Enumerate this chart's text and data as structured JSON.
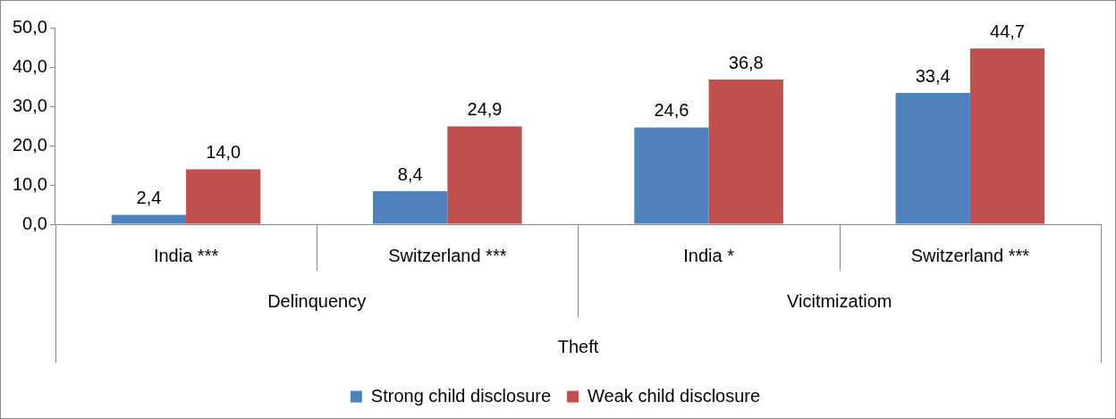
{
  "chart_data": {
    "type": "bar",
    "categories": [
      "India ***",
      "Switzerland ***",
      "India *",
      "Switzerland ***"
    ],
    "xlabel": "Theft",
    "annotations": [
      "Delinquency",
      "Vicitmizatiom"
    ],
    "series": [
      {
        "name": "Strong child disclosure",
        "color": "#4f81bd",
        "values": [
          2.4,
          8.4,
          24.6,
          33.4
        ],
        "value_labels": [
          "2,4",
          "8,4",
          "24,6",
          "33,4"
        ]
      },
      {
        "name": "Weak child disclosure",
        "color": "#c0504d",
        "values": [
          14.0,
          24.9,
          36.8,
          44.7
        ],
        "value_labels": [
          "14,0",
          "24,9",
          "36,8",
          "44,7"
        ]
      }
    ],
    "ylim": [
      0,
      50
    ],
    "yticks": [
      {
        "value": 0,
        "label": "0,0"
      },
      {
        "value": 10,
        "label": "10,0"
      },
      {
        "value": 20,
        "label": "20,0"
      },
      {
        "value": 30,
        "label": "30,0"
      },
      {
        "value": 40,
        "label": "40,0"
      },
      {
        "value": 50,
        "label": "50,0"
      }
    ],
    "grid": false,
    "legend": "bottom"
  }
}
